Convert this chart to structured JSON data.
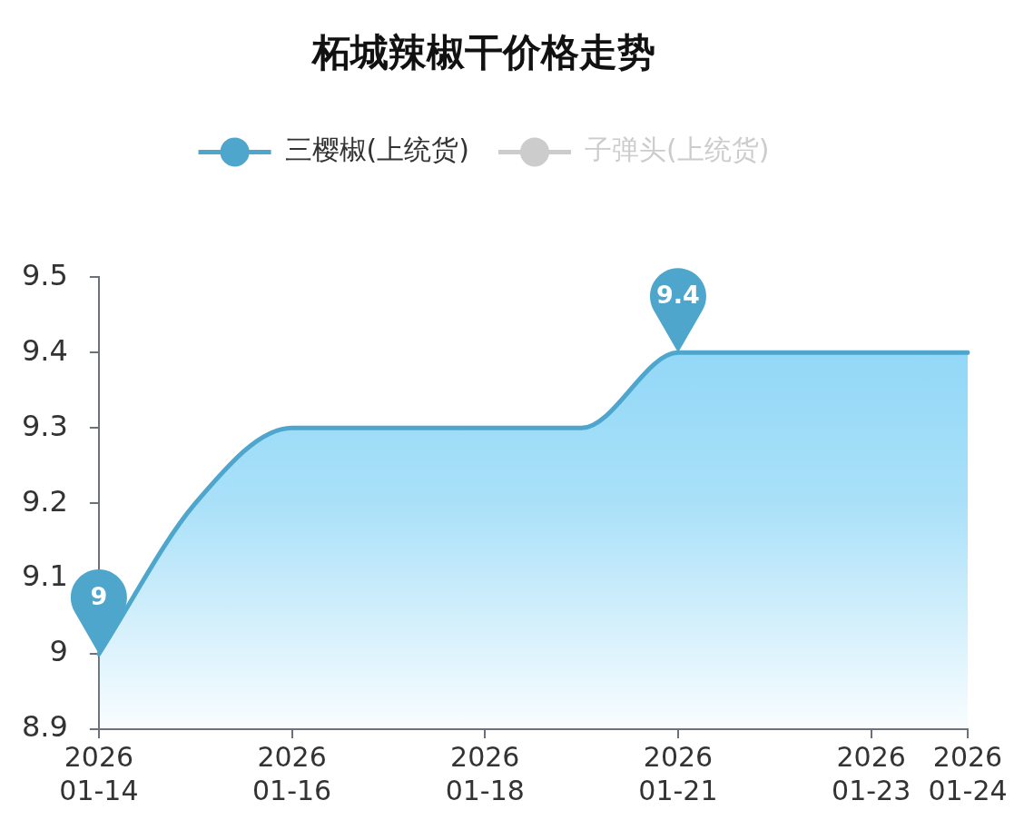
{
  "chart_data": {
    "type": "area",
    "title": "柘城辣椒干价格走势",
    "categories": [
      "2026\n01-14",
      null,
      "2026\n01-16",
      null,
      "2026\n01-18",
      null,
      "2026\n01-21",
      null,
      "2026\n01-23",
      "2026\n01-24"
    ],
    "series": [
      {
        "name": "三樱椒(上统货)",
        "color": "#4fa6cc",
        "values": [
          9,
          9.2,
          9.3,
          9.3,
          9.3,
          9.3,
          9.4,
          9.4,
          9.4,
          9.4
        ],
        "value_labels": [
          "9",
          null,
          null,
          null,
          null,
          null,
          "9.4",
          null,
          null,
          null
        ]
      },
      {
        "name": "子弹头(上统货)",
        "color": "#cccccc",
        "values": [
          null,
          null,
          null,
          null,
          null,
          null,
          null,
          null,
          null,
          null
        ]
      }
    ],
    "ylim": [
      8.9,
      9.5
    ],
    "yticks": [
      8.9,
      9,
      9.1,
      9.2,
      9.3,
      9.4,
      9.5
    ],
    "grid": false,
    "legend": "top",
    "marker": "none",
    "line_style": "solid"
  }
}
